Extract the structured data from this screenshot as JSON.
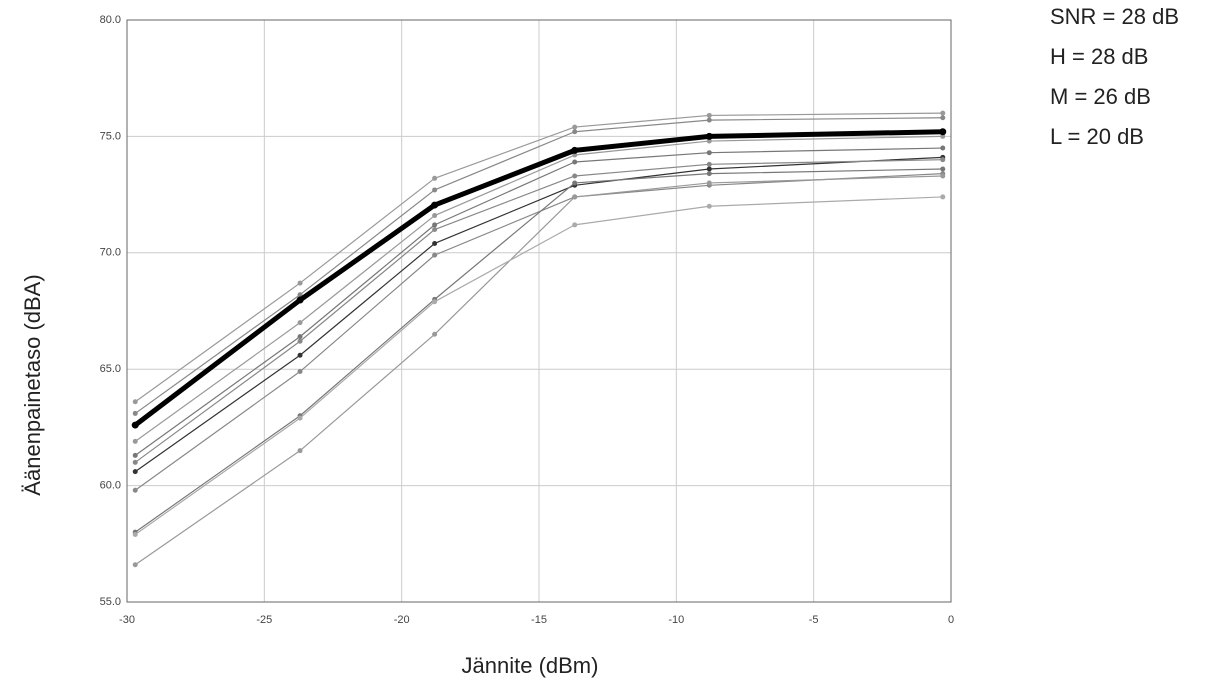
{
  "chart_data": {
    "type": "line",
    "xlabel": "Jännite (dBm)",
    "ylabel": "Äänenpainetaso (dBA)",
    "annotations": [
      "SNR = 28 dB",
      "H = 28 dB",
      "M = 26 dB",
      "L = 20 dB"
    ],
    "x": [
      -29.7,
      -23.7,
      -18.8,
      -13.7,
      -8.8,
      -0.3
    ],
    "xlim": [
      -30,
      0
    ],
    "xticks": [
      -30,
      -25,
      -20,
      -15,
      -10,
      -5,
      0
    ],
    "ylim": [
      55,
      80
    ],
    "yticks": [
      {
        "value": 55,
        "label": "55.0"
      },
      {
        "value": 60,
        "label": "60.0"
      },
      {
        "value": 65,
        "label": "65.0"
      },
      {
        "value": 70,
        "label": "70.0"
      },
      {
        "value": 75,
        "label": "75.0"
      },
      {
        "value": 80,
        "label": "80.0"
      }
    ],
    "grid": true,
    "series": [
      {
        "color": "#999999",
        "values": [
          63.6,
          68.7,
          73.2,
          75.4,
          75.9,
          76.0
        ]
      },
      {
        "color": "#888888",
        "values": [
          63.1,
          68.2,
          72.7,
          75.2,
          75.7,
          75.8
        ]
      },
      {
        "color": "#999999",
        "values": [
          61.9,
          67.0,
          71.6,
          74.2,
          74.8,
          75.0
        ]
      },
      {
        "color": "#777777",
        "values": [
          61.3,
          66.4,
          71.2,
          73.9,
          74.3,
          74.5
        ]
      },
      {
        "color": "#333333",
        "values": [
          60.6,
          65.6,
          70.4,
          72.9,
          73.6,
          74.1
        ]
      },
      {
        "color": "#888888",
        "values": [
          61.0,
          66.2,
          71.0,
          73.3,
          73.8,
          74.0
        ]
      },
      {
        "color": "#888888",
        "values": [
          59.8,
          64.9,
          69.9,
          72.4,
          72.9,
          73.4
        ]
      },
      {
        "color": "#777777",
        "values": [
          58.0,
          63.0,
          68.0,
          73.0,
          73.4,
          73.6
        ]
      },
      {
        "color": "#999999",
        "values": [
          56.6,
          61.5,
          66.5,
          72.4,
          73.0,
          73.3
        ]
      },
      {
        "color": "#aaaaaa",
        "values": [
          57.9,
          62.9,
          67.9,
          71.2,
          72.0,
          72.4
        ]
      },
      {
        "color": "#000000",
        "values": [
          62.6,
          67.97,
          72.05,
          74.4,
          75.0,
          75.2
        ],
        "width": 5
      }
    ]
  }
}
